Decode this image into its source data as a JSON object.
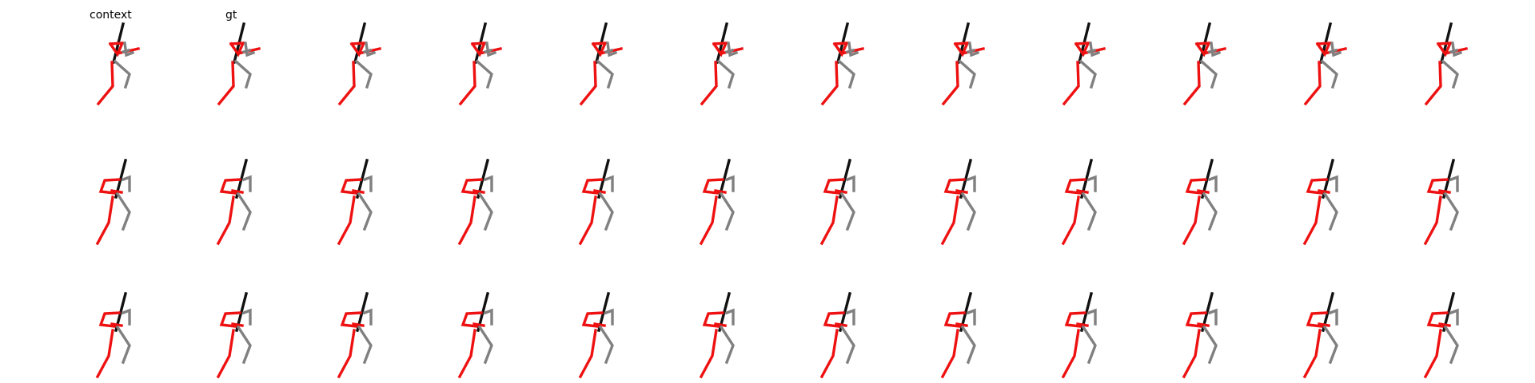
{
  "labels": {
    "context": "context",
    "gt": "gt"
  },
  "grid": {
    "rows": 3,
    "columns": 12
  },
  "colors": {
    "left_limbs": "#ee1111",
    "right_limbs": "#808080",
    "torso": "#111111"
  }
}
